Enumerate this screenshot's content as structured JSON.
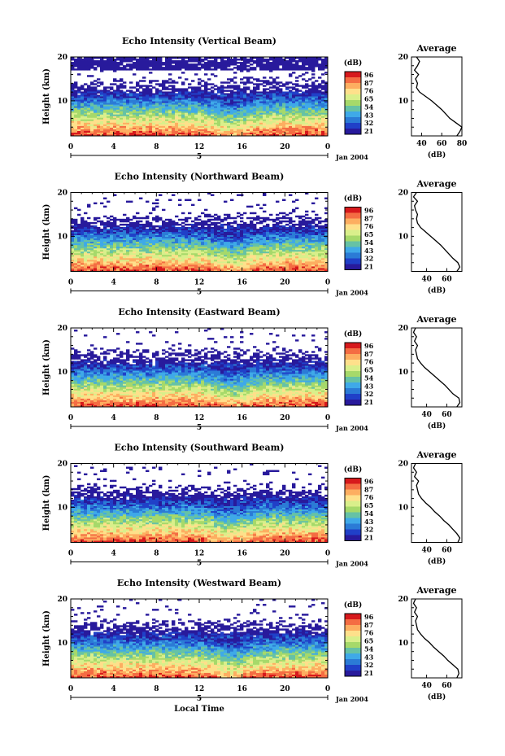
{
  "figure": {
    "xlabel": "Local Time",
    "colorbar_unit": "(dB)",
    "colorbar_ticks": [
      "96",
      "87",
      "76",
      "65",
      "54",
      "43",
      "32",
      "21"
    ],
    "colorbar_colors": [
      "#d7191c",
      "#f46d43",
      "#fdae61",
      "#fee08b",
      "#d9ef8b",
      "#a6d96a",
      "#66c2a5",
      "#3fa9e8",
      "#2b7bd6",
      "#2040c8",
      "#281a9c"
    ],
    "date_label": "Jan 2004",
    "day_label": "5",
    "profile_title": "Average",
    "profile_xlabel": "(dB)"
  },
  "chart_data": [
    {
      "type": "heatmap",
      "title": "Echo Intensity (Vertical Beam)",
      "ylabel": "Height (km)",
      "xlabel": "",
      "x_ticks": [
        "0",
        "4",
        "8",
        "12",
        "16",
        "20",
        "0"
      ],
      "y_ticks": [
        "20",
        "10"
      ],
      "xlim": [
        0,
        24
      ],
      "ylim": [
        2,
        20
      ],
      "colorbar": {
        "label": "(dB)",
        "ticks": [
          "96",
          "87",
          "76",
          "65",
          "54",
          "43",
          "32",
          "21"
        ]
      },
      "profile": {
        "title": "Average",
        "xlabel": "(dB)",
        "x_ticks": [
          "40",
          "60",
          "80"
        ],
        "y_ticks": [
          "20",
          "10"
        ],
        "xlim": [
          30,
          80
        ],
        "heights": [
          2,
          3,
          4,
          5,
          6,
          7,
          8,
          9,
          10,
          11,
          12,
          13,
          14,
          15,
          16,
          17,
          18,
          19,
          20
        ],
        "values": [
          75,
          78,
          80,
          74,
          68,
          64,
          60,
          55,
          50,
          44,
          38,
          35,
          36,
          34,
          37,
          33,
          36,
          38,
          35
        ]
      }
    },
    {
      "type": "heatmap",
      "title": "Echo Intensity (Northward Beam)",
      "ylabel": "Height (km)",
      "xlabel": "",
      "x_ticks": [
        "0",
        "4",
        "8",
        "12",
        "16",
        "20",
        "0"
      ],
      "y_ticks": [
        "20",
        "10"
      ],
      "xlim": [
        0,
        24
      ],
      "ylim": [
        2,
        20
      ],
      "colorbar": {
        "label": "(dB)",
        "ticks": [
          "96",
          "87",
          "76",
          "65",
          "54",
          "43",
          "32",
          "21"
        ]
      },
      "profile": {
        "title": "Average",
        "xlabel": "(dB)",
        "x_ticks": [
          "40",
          "60"
        ],
        "y_ticks": [
          "20",
          "10"
        ],
        "xlim": [
          25,
          75
        ],
        "heights": [
          2,
          3,
          4,
          5,
          6,
          7,
          8,
          9,
          10,
          11,
          12,
          13,
          14,
          15,
          16,
          17,
          18,
          19,
          20
        ],
        "values": [
          70,
          73,
          71,
          66,
          62,
          58,
          54,
          49,
          44,
          39,
          34,
          31,
          30,
          31,
          29,
          28,
          31,
          27,
          30
        ]
      }
    },
    {
      "type": "heatmap",
      "title": "Echo Intensity (Eastward Beam)",
      "ylabel": "Height (km)",
      "xlabel": "",
      "x_ticks": [
        "0",
        "4",
        "8",
        "12",
        "16",
        "20",
        "0"
      ],
      "y_ticks": [
        "20",
        "10"
      ],
      "xlim": [
        0,
        24
      ],
      "ylim": [
        2,
        20
      ],
      "colorbar": {
        "label": "(dB)",
        "ticks": [
          "96",
          "87",
          "76",
          "65",
          "54",
          "43",
          "32",
          "21"
        ]
      },
      "profile": {
        "title": "Average",
        "xlabel": "(dB)",
        "x_ticks": [
          "40",
          "60"
        ],
        "y_ticks": [
          "20",
          "10"
        ],
        "xlim": [
          25,
          75
        ],
        "heights": [
          2,
          3,
          4,
          5,
          6,
          7,
          8,
          9,
          10,
          11,
          12,
          13,
          14,
          15,
          16,
          17,
          18,
          19,
          20
        ],
        "values": [
          70,
          73,
          72,
          66,
          62,
          58,
          53,
          48,
          43,
          38,
          34,
          31,
          30,
          29,
          31,
          28,
          30,
          27,
          29
        ]
      }
    },
    {
      "type": "heatmap",
      "title": "Echo Intensity (Southward Beam)",
      "ylabel": "Height (km)",
      "xlabel": "",
      "x_ticks": [
        "0",
        "4",
        "8",
        "12",
        "16",
        "20",
        "0"
      ],
      "y_ticks": [
        "20",
        "10"
      ],
      "xlim": [
        0,
        24
      ],
      "ylim": [
        2,
        20
      ],
      "colorbar": {
        "label": "(dB)",
        "ticks": [
          "96",
          "87",
          "76",
          "65",
          "54",
          "43",
          "32",
          "21"
        ]
      },
      "profile": {
        "title": "Average",
        "xlabel": "(dB)",
        "x_ticks": [
          "40",
          "60"
        ],
        "y_ticks": [
          "20",
          "10"
        ],
        "xlim": [
          25,
          75
        ],
        "heights": [
          2,
          3,
          4,
          5,
          6,
          7,
          8,
          9,
          10,
          11,
          12,
          13,
          14,
          15,
          16,
          17,
          18,
          19,
          20
        ],
        "values": [
          71,
          73,
          70,
          66,
          62,
          57,
          53,
          48,
          44,
          39,
          35,
          32,
          31,
          30,
          32,
          28,
          30,
          27,
          29
        ]
      }
    },
    {
      "type": "heatmap",
      "title": "Echo Intensity (Westward Beam)",
      "ylabel": "Height (km)",
      "xlabel": "Local Time",
      "x_ticks": [
        "0",
        "4",
        "8",
        "12",
        "16",
        "20",
        "0"
      ],
      "y_ticks": [
        "20",
        "10"
      ],
      "xlim": [
        0,
        24
      ],
      "ylim": [
        2,
        20
      ],
      "colorbar": {
        "label": "(dB)",
        "ticks": [
          "96",
          "87",
          "76",
          "65",
          "54",
          "43",
          "32",
          "21"
        ]
      },
      "profile": {
        "title": "Average",
        "xlabel": "(dB)",
        "x_ticks": [
          "40",
          "60"
        ],
        "y_ticks": [
          "20",
          "10"
        ],
        "xlim": [
          25,
          75
        ],
        "heights": [
          2,
          3,
          4,
          5,
          6,
          7,
          8,
          9,
          10,
          11,
          12,
          13,
          14,
          15,
          16,
          17,
          18,
          19,
          20
        ],
        "values": [
          70,
          72,
          71,
          66,
          61,
          57,
          52,
          47,
          43,
          38,
          34,
          31,
          30,
          29,
          31,
          28,
          30,
          27,
          29
        ]
      }
    }
  ]
}
